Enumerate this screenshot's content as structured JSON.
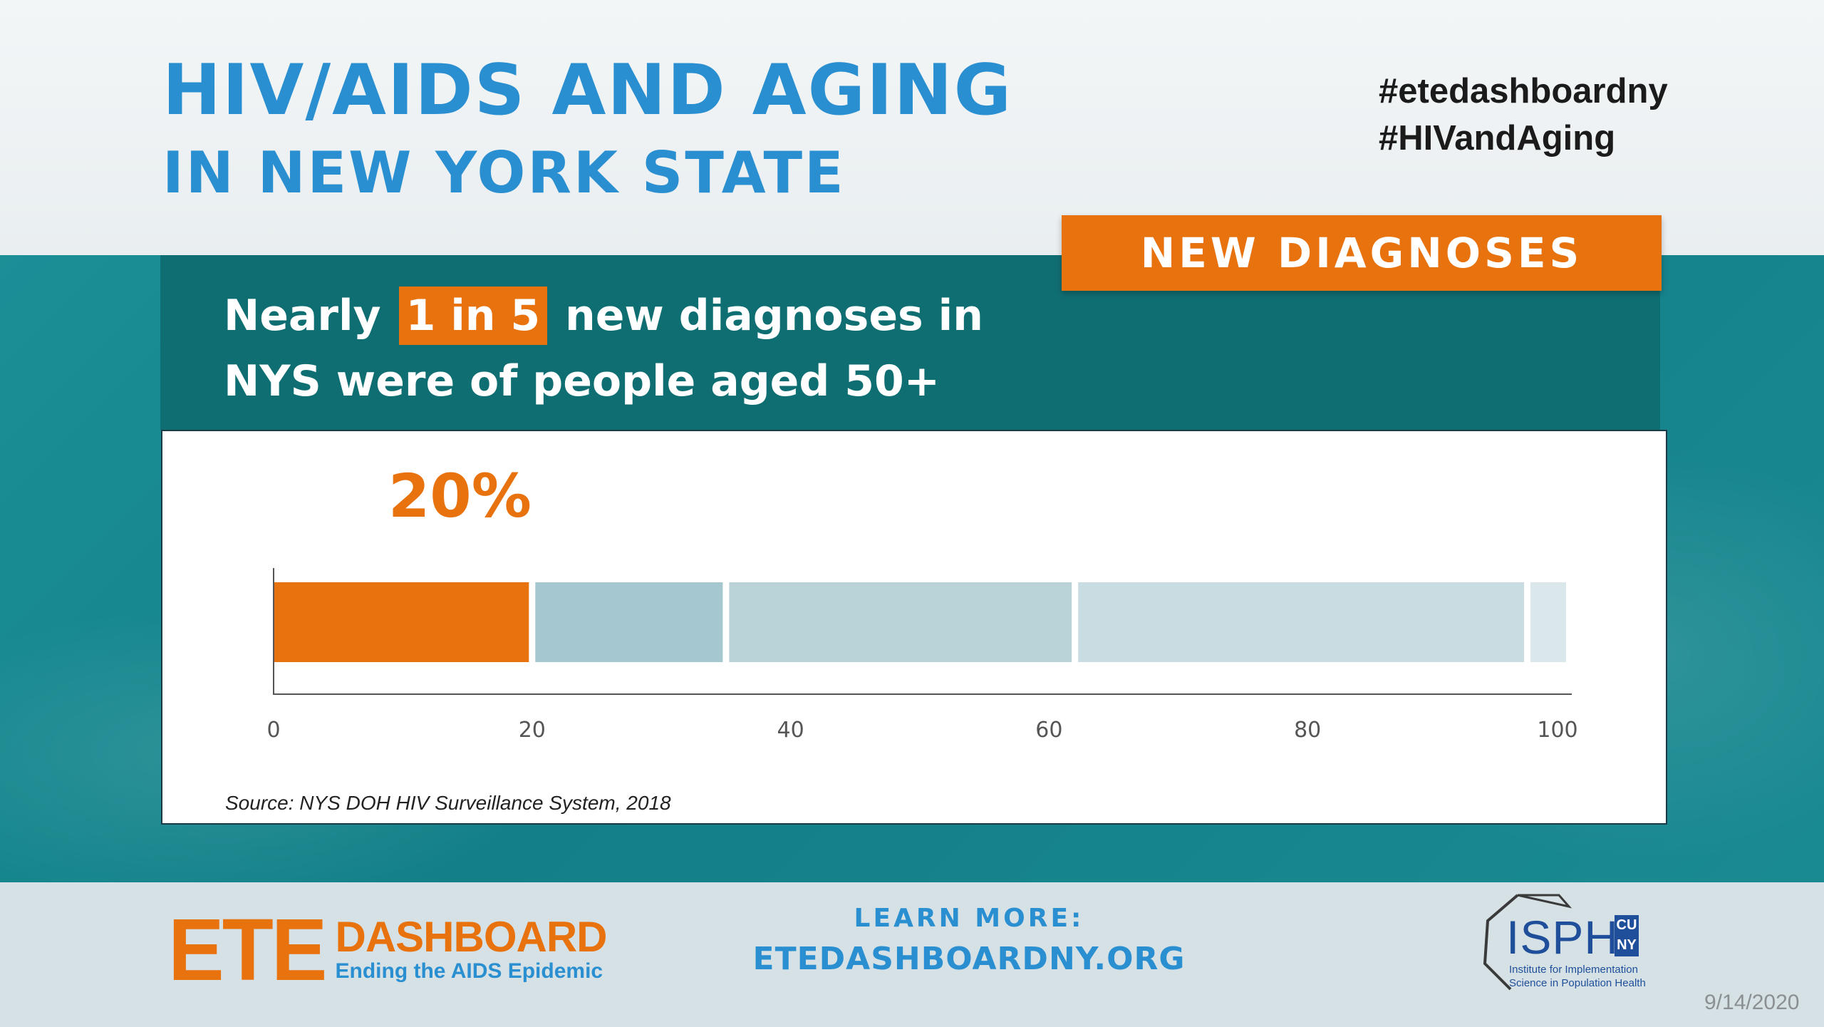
{
  "header": {
    "title": "HIV/AIDS AND AGING",
    "subtitle": "IN NEW YORK STATE",
    "hashtags": [
      "#etedashboardny",
      "#HIVandAging"
    ]
  },
  "badge": {
    "label": "NEW DIAGNOSES"
  },
  "headline": {
    "line1_pre": "Nearly",
    "line1_highlight": "1 in 5",
    "line1_post": "new diagnoses in",
    "line2": "NYS were of people aged 50+"
  },
  "colors": {
    "accent": "#e8720e",
    "title_blue": "#2a8fd0",
    "teal": "#137f87",
    "segment_shades": [
      "#e8720e",
      "#a5c7cf",
      "#b9d3d9",
      "#c9dce1",
      "#dae7eb"
    ]
  },
  "chart_data": {
    "type": "bar",
    "orientation": "horizontal-stacked",
    "series": [
      {
        "values": [
          20
        ]
      },
      {
        "values": [
          15
        ]
      },
      {
        "values": [
          27
        ]
      },
      {
        "values": [
          35
        ]
      },
      {
        "values": [
          3
        ]
      }
    ],
    "highlight_label": "20%",
    "x_ticks": [
      "0",
      "20",
      "40",
      "60",
      "80",
      "100"
    ],
    "xlim": [
      0,
      100
    ],
    "grid": false,
    "source": "Source: NYS DOH HIV Surveillance System, 2018"
  },
  "footer": {
    "logo_ete": {
      "big": "ETE",
      "word": "DASHBOARD",
      "tagline": "Ending the AIDS Epidemic"
    },
    "learn_more_label": "LEARN MORE:",
    "learn_more_url": "ETEDASHBOARDNY.ORG",
    "logo_isph": {
      "name": "ISPH",
      "cuny": "CU NY",
      "caption_line1": "Institute for Implementation",
      "caption_line2": "Science in Population Health"
    },
    "date": "9/14/2020"
  }
}
